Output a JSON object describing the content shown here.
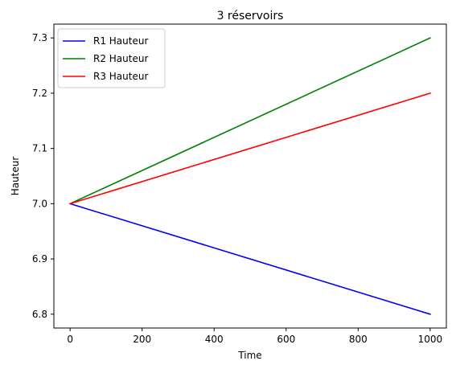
{
  "chart_data": {
    "type": "line",
    "title": "3 réservoirs",
    "xlabel": "Time",
    "ylabel": "Hauteur",
    "xlim": [
      -45,
      1045
    ],
    "ylim": [
      6.775,
      7.325
    ],
    "xticks": [
      0,
      200,
      400,
      600,
      800,
      1000
    ],
    "yticks": [
      6.8,
      6.9,
      7.0,
      7.1,
      7.2,
      7.3
    ],
    "xtick_labels": [
      "0",
      "200",
      "400",
      "600",
      "800",
      "1000"
    ],
    "ytick_labels": [
      "6.8",
      "6.9",
      "7.0",
      "7.1",
      "7.2",
      "7.3"
    ],
    "grid": false,
    "legend_position": "top-left",
    "series": [
      {
        "name": "R1 Hauteur",
        "color": "#0000ff",
        "x": [
          0,
          1000
        ],
        "y": [
          7.0,
          6.8
        ]
      },
      {
        "name": "R2 Hauteur",
        "color": "#008000",
        "x": [
          0,
          1000
        ],
        "y": [
          7.0,
          7.3
        ]
      },
      {
        "name": "R3 Hauteur",
        "color": "#ff0000",
        "x": [
          0,
          1000
        ],
        "y": [
          7.0,
          7.2
        ]
      }
    ]
  }
}
